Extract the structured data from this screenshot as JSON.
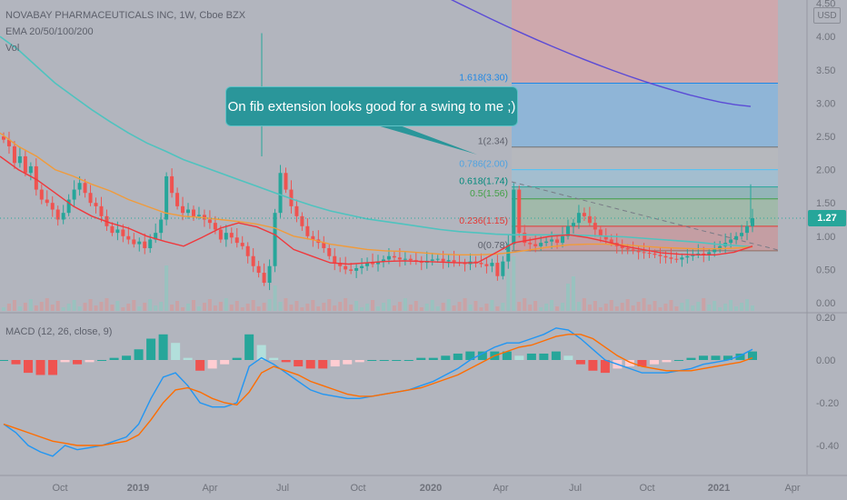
{
  "header": {
    "symbol_line": "NOVABAY PHARMACEUTICALS INC, 1W, Cboe BZX",
    "ema_line": "EMA 20/50/100/200",
    "vol_line": "Vol"
  },
  "currency_badge": "USD",
  "last_price_badge": "1.27",
  "macd_label": "MACD (12, 26, close, 9)",
  "callout_text": "On fib extension looks good for a swing to me ;)",
  "colors": {
    "background": "#b2b5be",
    "up": "#26a69a",
    "down": "#ef5350",
    "ema20": "#f0383c",
    "ema50": "#f19b3a",
    "ema100": "#4fc3bf",
    "ema200": "#5b4bd6",
    "macd_line": "#2196f3",
    "signal_line": "#ff6d00",
    "callout": "#2a969a"
  },
  "chart_data": [
    {
      "type": "candlestick",
      "panel": "price",
      "x_tick_labels": [
        "Oct",
        "2019",
        "Apr",
        "Jul",
        "Oct",
        "2020",
        "Apr",
        "Jul",
        "Oct",
        "2021",
        "Apr"
      ],
      "y_tick_labels": [
        "0.00",
        "0.50",
        "1.00",
        "1.50",
        "2.00",
        "2.50",
        "3.00",
        "3.50",
        "4.00",
        "4.50"
      ],
      "ylim": [
        0,
        4.6
      ],
      "last_price": 1.27,
      "fib_levels": [
        {
          "ratio": "0",
          "label": "0(0.78)",
          "price": 0.78
        },
        {
          "ratio": "0.236",
          "label": "0.236(1.15)",
          "price": 1.15
        },
        {
          "ratio": "0.5",
          "label": "0.5(1.56)",
          "price": 1.56
        },
        {
          "ratio": "0.618",
          "label": "0.618(1.74)",
          "price": 1.74
        },
        {
          "ratio": "0.786",
          "label": "0.786(2.00)",
          "price": 2.0
        },
        {
          "ratio": "1",
          "label": "1(2.34)",
          "price": 2.34
        },
        {
          "ratio": "1.618",
          "label": "1.618(3.30)",
          "price": 3.3
        }
      ],
      "weekly_closes": [
        2.45,
        2.35,
        2.1,
        2.2,
        1.95,
        2.05,
        1.7,
        1.55,
        1.5,
        1.4,
        1.25,
        1.35,
        1.55,
        1.7,
        1.8,
        1.65,
        1.5,
        1.45,
        1.3,
        1.15,
        1.05,
        1.1,
        1.0,
        0.95,
        0.88,
        0.92,
        0.82,
        0.95,
        1.05,
        1.25,
        1.9,
        1.65,
        1.45,
        1.35,
        1.4,
        1.3,
        1.32,
        1.25,
        1.2,
        1.1,
        0.95,
        1.05,
        0.98,
        0.9,
        0.85,
        0.7,
        0.55,
        0.45,
        0.3,
        0.55,
        1.35,
        1.95,
        1.7,
        1.45,
        1.3,
        1.15,
        1.0,
        0.95,
        0.9,
        0.82,
        0.7,
        0.6,
        0.55,
        0.5,
        0.48,
        0.52,
        0.55,
        0.6,
        0.58,
        0.62,
        0.65,
        0.7,
        0.68,
        0.65,
        0.66,
        0.64,
        0.62,
        0.6,
        0.63,
        0.65,
        0.66,
        0.62,
        0.64,
        0.61,
        0.6,
        0.58,
        0.62,
        0.6,
        0.58,
        0.55,
        0.6,
        0.4,
        0.62,
        0.88,
        1.7,
        1.05,
        0.9,
        0.88,
        0.85,
        0.9,
        0.92,
        0.95,
        0.9,
        1.0,
        1.15,
        1.2,
        1.35,
        1.3,
        1.2,
        1.1,
        1.0,
        0.95,
        0.9,
        0.85,
        0.82,
        0.8,
        0.78,
        0.76,
        0.75,
        0.74,
        0.72,
        0.7,
        0.68,
        0.66,
        0.65,
        0.68,
        0.7,
        0.72,
        0.74,
        0.72,
        0.76,
        0.8,
        0.85,
        0.9,
        0.95,
        1.0,
        1.05,
        1.15,
        1.27
      ],
      "ema20": [
        2.2,
        2.0,
        1.85,
        1.65,
        1.45,
        1.3,
        1.2,
        1.12,
        1.0,
        0.92,
        0.85,
        0.98,
        1.12,
        1.2,
        1.14,
        1.02,
        0.8,
        0.7,
        0.6,
        0.58,
        0.6,
        0.62,
        0.63,
        0.62,
        0.61,
        0.6,
        0.6,
        0.75,
        0.9,
        0.95,
        1.0,
        1.02,
        0.98,
        0.92,
        0.85,
        0.8,
        0.75,
        0.73,
        0.72,
        0.72,
        0.76,
        0.85
      ],
      "ema50": [
        2.55,
        2.35,
        2.2,
        2.0,
        1.9,
        1.78,
        1.68,
        1.55,
        1.45,
        1.35,
        1.3,
        1.28,
        1.25,
        1.22,
        1.18,
        1.12,
        1.0,
        0.95,
        0.88,
        0.84,
        0.8,
        0.78,
        0.77,
        0.75,
        0.73,
        0.72,
        0.72,
        0.73,
        0.76,
        0.8,
        0.84,
        0.87,
        0.88,
        0.88,
        0.87,
        0.85,
        0.83,
        0.82,
        0.81,
        0.81,
        0.82,
        0.84
      ],
      "ema100": [
        4.0,
        3.8,
        3.55,
        3.3,
        3.1,
        2.9,
        2.72,
        2.55,
        2.4,
        2.28,
        2.15,
        2.05,
        1.95,
        1.85,
        1.75,
        1.65,
        1.55,
        1.46,
        1.38,
        1.32,
        1.26,
        1.22,
        1.18,
        1.14,
        1.1,
        1.07,
        1.05,
        1.03,
        1.02,
        1.02,
        1.02,
        1.02,
        1.01,
        1.0,
        0.99,
        0.97,
        0.95,
        0.93,
        0.91,
        0.88,
        0.86,
        0.84
      ],
      "ema200_visible_range": [
        4.6,
        2.95
      ]
    },
    {
      "type": "histogram+line",
      "panel": "macd",
      "y_tick_labels": [
        "0.20",
        "0.00",
        "-0.20",
        "-0.40"
      ],
      "ylim": [
        -0.5,
        0.22
      ],
      "series": [
        {
          "name": "MACD",
          "values": [
            -0.3,
            -0.34,
            -0.4,
            -0.43,
            -0.45,
            -0.4,
            -0.42,
            -0.41,
            -0.4,
            -0.38,
            -0.36,
            -0.3,
            -0.18,
            -0.08,
            -0.06,
            -0.12,
            -0.2,
            -0.22,
            -0.22,
            -0.2,
            -0.03,
            0.01,
            -0.02,
            -0.06,
            -0.1,
            -0.14,
            -0.16,
            -0.17,
            -0.18,
            -0.18,
            -0.17,
            -0.16,
            -0.15,
            -0.14,
            -0.12,
            -0.1,
            -0.07,
            -0.04,
            0.0,
            0.03,
            0.06,
            0.08,
            0.08,
            0.1,
            0.12,
            0.15,
            0.14,
            0.1,
            0.05,
            0.0,
            -0.02,
            -0.04,
            -0.06,
            -0.06,
            -0.06,
            -0.05,
            -0.04,
            -0.02,
            -0.01,
            0.0,
            0.02,
            0.05
          ]
        },
        {
          "name": "Signal",
          "values": [
            -0.3,
            -0.32,
            -0.34,
            -0.36,
            -0.38,
            -0.39,
            -0.4,
            -0.4,
            -0.4,
            -0.39,
            -0.38,
            -0.35,
            -0.28,
            -0.2,
            -0.14,
            -0.13,
            -0.15,
            -0.18,
            -0.2,
            -0.21,
            -0.15,
            -0.06,
            -0.03,
            -0.05,
            -0.07,
            -0.1,
            -0.12,
            -0.14,
            -0.16,
            -0.17,
            -0.17,
            -0.16,
            -0.15,
            -0.14,
            -0.13,
            -0.11,
            -0.09,
            -0.07,
            -0.04,
            -0.01,
            0.02,
            0.04,
            0.06,
            0.07,
            0.09,
            0.11,
            0.12,
            0.12,
            0.1,
            0.06,
            0.02,
            -0.01,
            -0.03,
            -0.04,
            -0.05,
            -0.05,
            -0.05,
            -0.04,
            -0.03,
            -0.02,
            -0.01,
            0.01
          ]
        },
        {
          "name": "Histogram",
          "values": [
            0.0,
            -0.02,
            -0.06,
            -0.07,
            -0.07,
            -0.01,
            -0.02,
            -0.01,
            0.0,
            0.01,
            0.02,
            0.05,
            0.1,
            0.12,
            0.08,
            0.01,
            -0.05,
            -0.04,
            -0.02,
            0.01,
            0.12,
            0.07,
            0.01,
            -0.01,
            -0.03,
            -0.04,
            -0.04,
            -0.03,
            -0.02,
            -0.01,
            0.0,
            0.0,
            0.0,
            0.0,
            0.01,
            0.01,
            0.02,
            0.03,
            0.04,
            0.04,
            0.04,
            0.04,
            0.02,
            0.03,
            0.03,
            0.04,
            0.02,
            -0.02,
            -0.05,
            -0.06,
            -0.04,
            -0.03,
            -0.03,
            -0.02,
            -0.01,
            0.0,
            0.01,
            0.02,
            0.02,
            0.02,
            0.03,
            0.04
          ]
        }
      ]
    }
  ]
}
